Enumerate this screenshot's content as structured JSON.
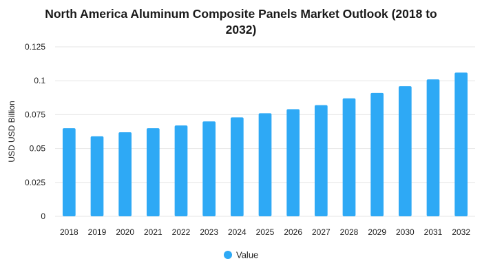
{
  "chart_data": {
    "type": "bar",
    "title_lines": [
      "North America Aluminum Composite Panels Market Outlook (2018 to",
      "2032)"
    ],
    "ylabel": "USD USD Billion",
    "xlabel": "",
    "categories": [
      "2018",
      "2019",
      "2020",
      "2021",
      "2022",
      "2023",
      "2024",
      "2025",
      "2026",
      "2027",
      "2028",
      "2029",
      "2030",
      "2031",
      "2032"
    ],
    "series": [
      {
        "name": "Value",
        "values": [
          0.065,
          0.059,
          0.062,
          0.065,
          0.067,
          0.07,
          0.073,
          0.076,
          0.079,
          0.082,
          0.087,
          0.091,
          0.096,
          0.101,
          0.106
        ]
      }
    ],
    "ylim": [
      0,
      0.125
    ],
    "yticks": [
      0,
      0.025,
      0.05,
      0.075,
      0.1,
      0.125
    ],
    "ytick_labels": [
      "0",
      "0.025",
      "0.05",
      "0.075",
      "0.1",
      "0.125"
    ],
    "grid": true,
    "legend": {
      "position": "bottom-center",
      "entries": [
        "Value"
      ]
    },
    "colors": {
      "bar": "#2EA9F5",
      "grid": "#E6E6E6",
      "axis_text": "#222222",
      "title": "#1A1A1A"
    }
  }
}
